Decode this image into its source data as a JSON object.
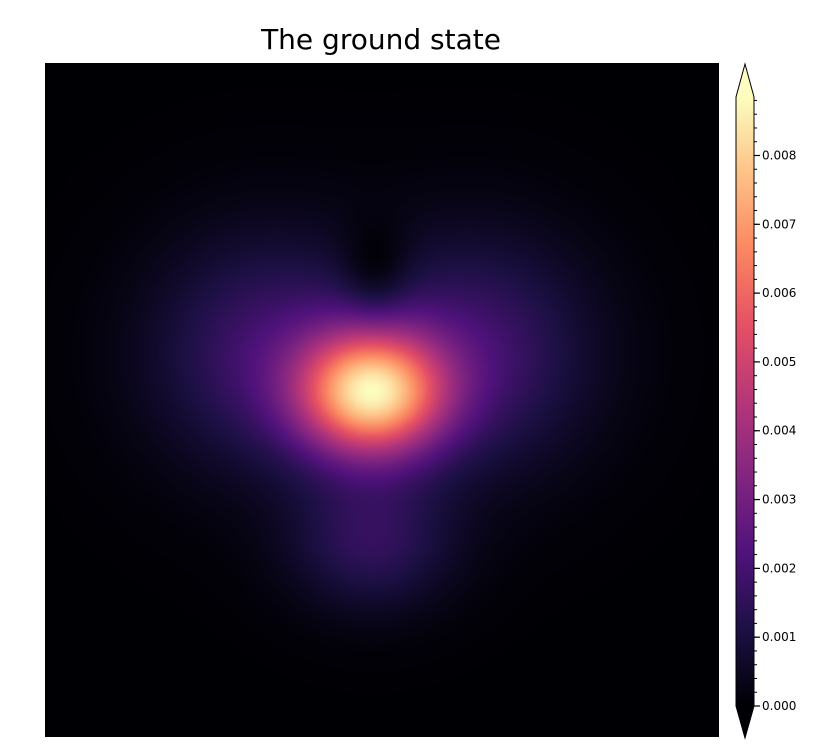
{
  "chart_data": {
    "type": "heatmap",
    "title": "The ground state",
    "colormap": "magma",
    "colorbar": {
      "min": 0.0,
      "max": 0.00885,
      "ticks": [
        "0.000",
        "0.001",
        "0.002",
        "0.003",
        "0.004",
        "0.005",
        "0.006",
        "0.007",
        "0.008"
      ],
      "minor_ticks_per_major": 5,
      "extend": "both"
    },
    "field": {
      "description": "heart-shaped ground-state probability density",
      "peak_value": 0.00885,
      "peak_location": [
        0.485,
        0.49
      ]
    }
  }
}
